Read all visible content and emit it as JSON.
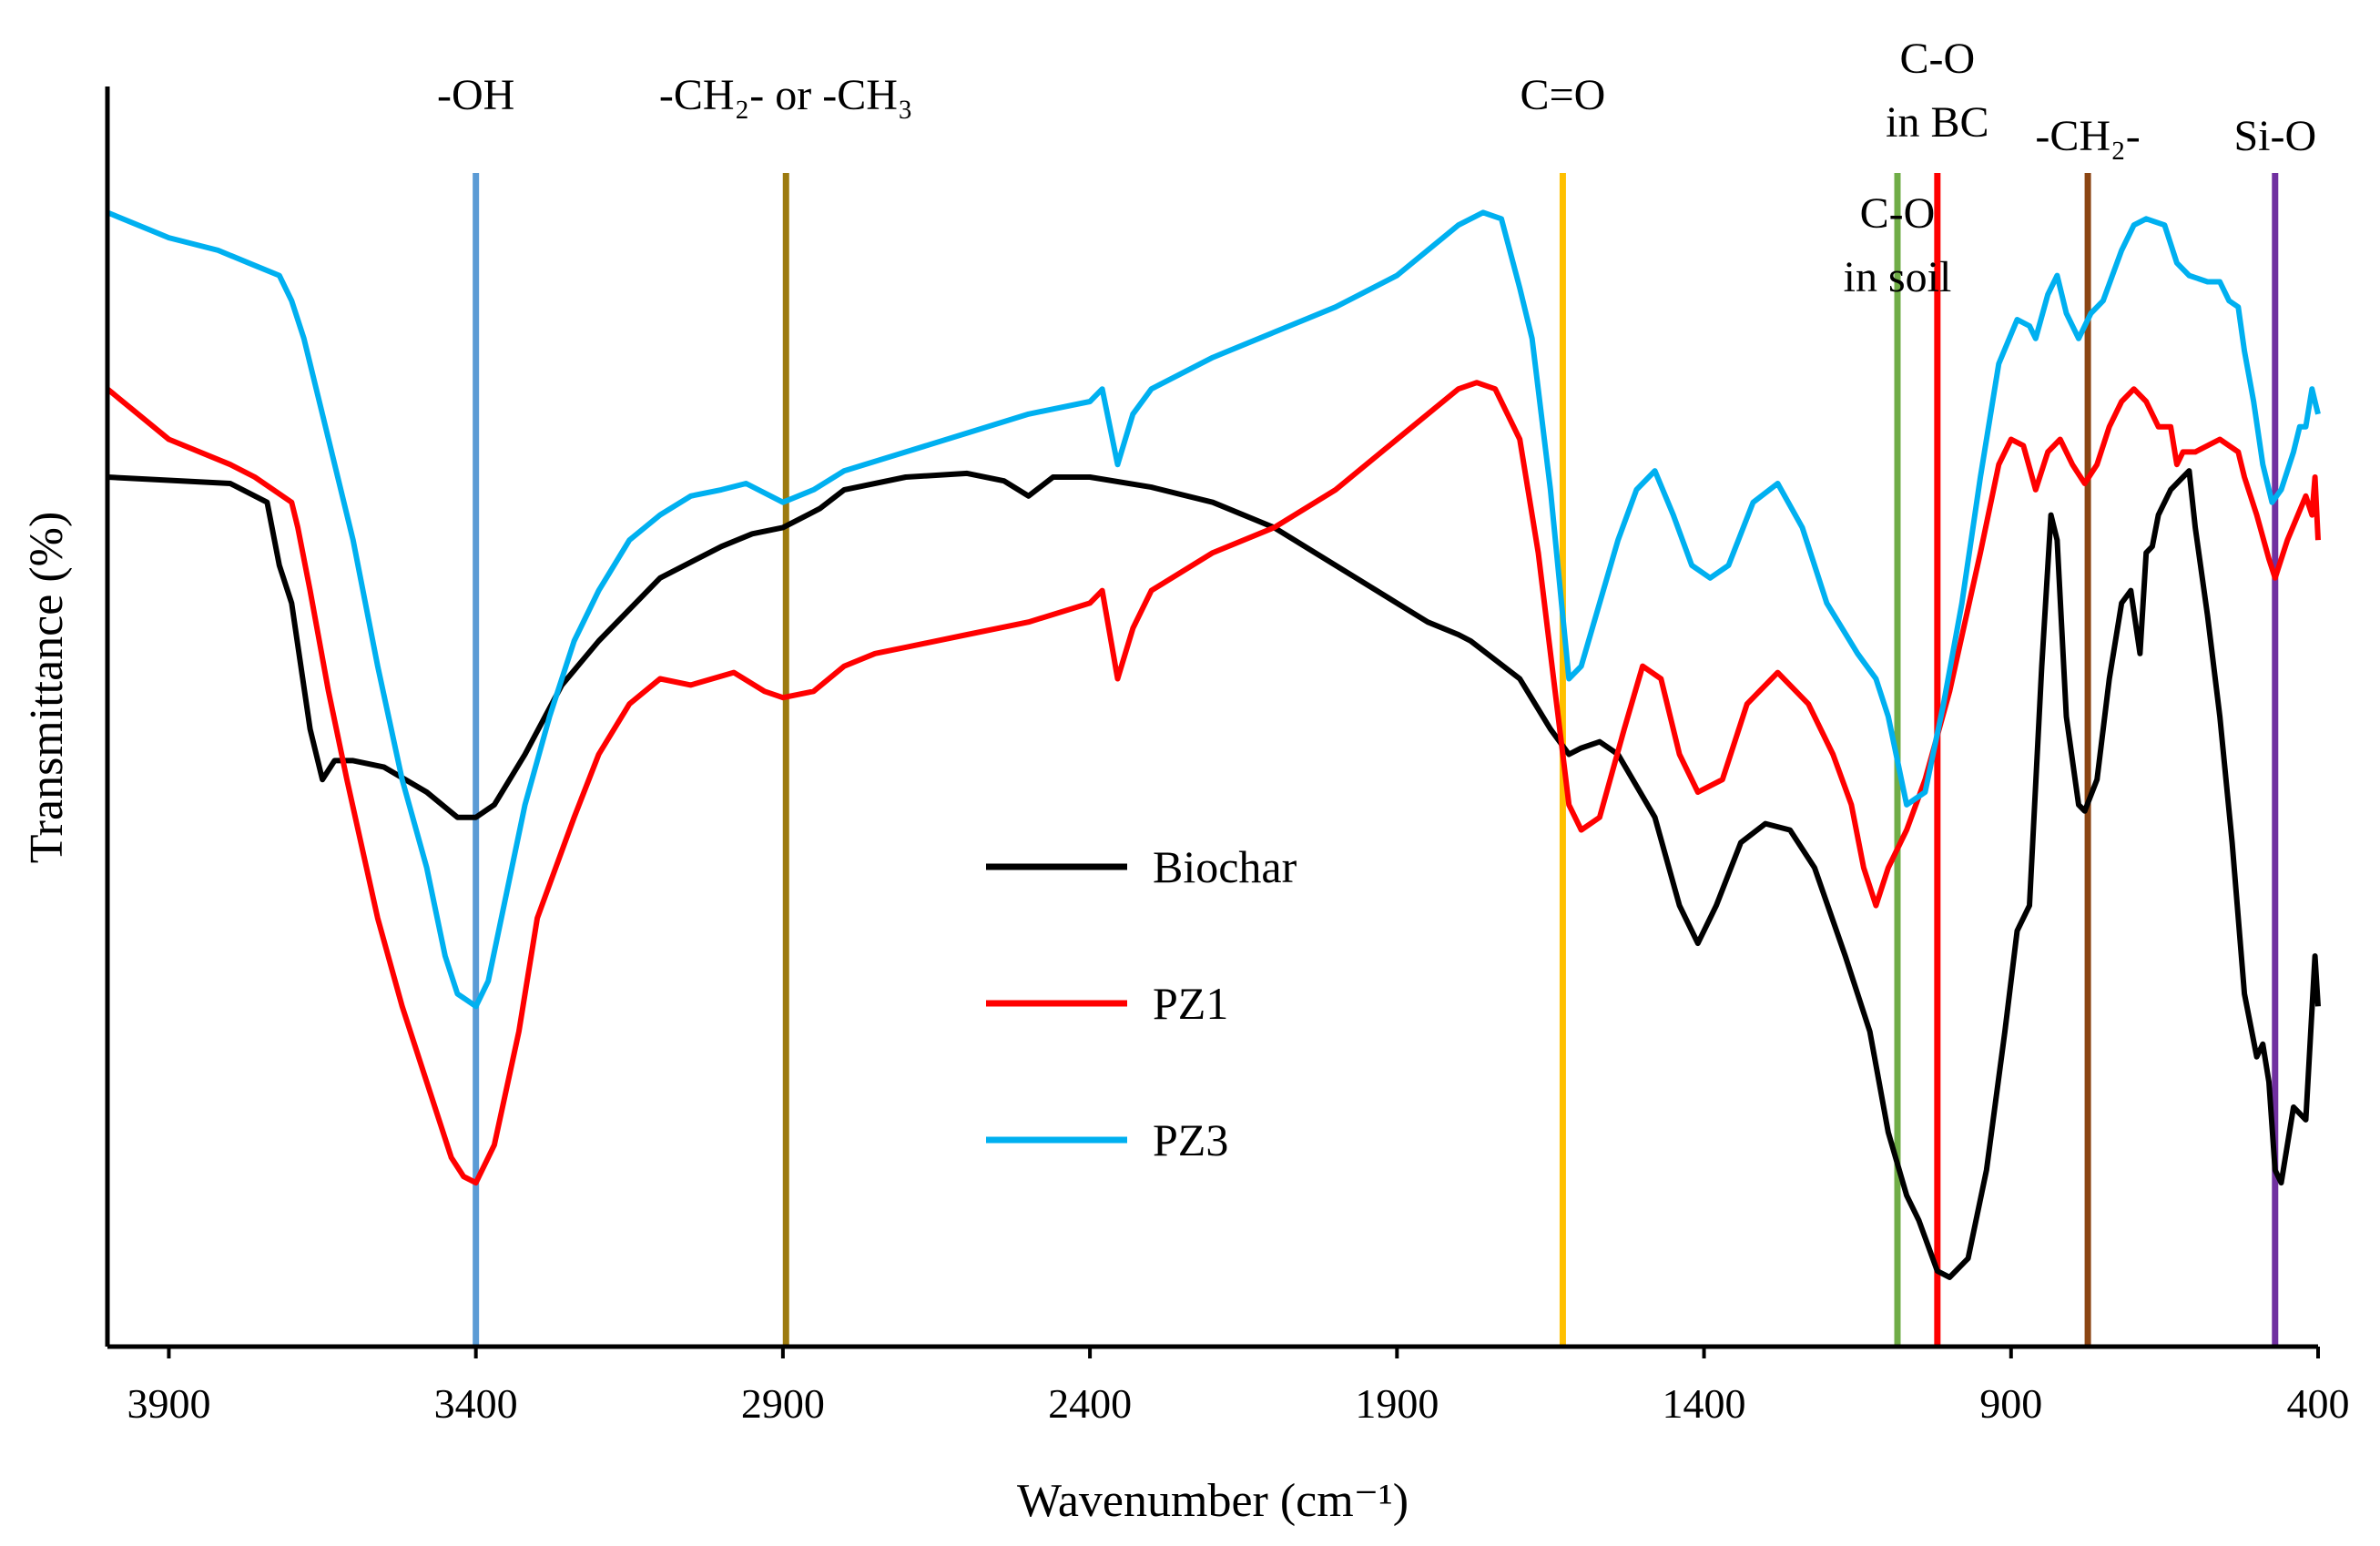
{
  "chart_data": {
    "type": "line",
    "xlabel": "Wavenumber (cm⁻¹)",
    "ylabel": "Transmittance (%)",
    "xlim": [
      4000,
      400
    ],
    "x_reversed": true,
    "y_tick_labels_shown": false,
    "ylim": [
      0,
      100
    ],
    "x_ticks": [
      3900,
      3400,
      2900,
      2400,
      1900,
      1400,
      900,
      400
    ],
    "grid": false,
    "legend_position": "center",
    "legend": [
      {
        "name": "Biochar",
        "color": "#000000"
      },
      {
        "name": "PZ1",
        "color": "#ff0000"
      },
      {
        "name": "PZ3",
        "color": "#00b0f0"
      }
    ],
    "annotations": [
      {
        "lines": [
          "-OH"
        ],
        "x": 3400,
        "color": "#5b9bd5"
      },
      {
        "lines": [
          "-CH₂- or -CH₃"
        ],
        "x": 2895,
        "color": "#9c7a0e"
      },
      {
        "lines": [
          "C=O"
        ],
        "x": 1630,
        "color": "#ffc000"
      },
      {
        "lines": [
          "C-O",
          "in soil"
        ],
        "x": 1085,
        "color": "#70ad47"
      },
      {
        "lines": [
          "C-O",
          "in BC"
        ],
        "x": 1020,
        "color": "#ff0000"
      },
      {
        "lines": [
          "-CH₂-"
        ],
        "x": 775,
        "color": "#8b4513"
      },
      {
        "lines": [
          "Si-O"
        ],
        "x": 470,
        "color": "#7030a0"
      }
    ],
    "series": [
      {
        "name": "Biochar",
        "color": "#000000",
        "points": [
          [
            4000,
            69
          ],
          [
            3800,
            68.5
          ],
          [
            3740,
            67
          ],
          [
            3720,
            62
          ],
          [
            3700,
            59
          ],
          [
            3670,
            49
          ],
          [
            3650,
            45
          ],
          [
            3630,
            46.5
          ],
          [
            3600,
            46.5
          ],
          [
            3550,
            46
          ],
          [
            3480,
            44
          ],
          [
            3430,
            42
          ],
          [
            3400,
            42
          ],
          [
            3370,
            43
          ],
          [
            3320,
            47
          ],
          [
            3260,
            52.5
          ],
          [
            3200,
            56
          ],
          [
            3100,
            61
          ],
          [
            3000,
            63.5
          ],
          [
            2950,
            64.5
          ],
          [
            2900,
            65
          ],
          [
            2840,
            66.5
          ],
          [
            2800,
            68
          ],
          [
            2700,
            69
          ],
          [
            2600,
            69.3
          ],
          [
            2540,
            68.7
          ],
          [
            2500,
            67.5
          ],
          [
            2460,
            69
          ],
          [
            2400,
            69
          ],
          [
            2300,
            68.2
          ],
          [
            2200,
            67
          ],
          [
            2100,
            65
          ],
          [
            2000,
            62
          ],
          [
            1900,
            59
          ],
          [
            1850,
            57.5
          ],
          [
            1800,
            56.5
          ],
          [
            1780,
            56
          ],
          [
            1700,
            53
          ],
          [
            1650,
            49
          ],
          [
            1620,
            47
          ],
          [
            1600,
            47.5
          ],
          [
            1570,
            48
          ],
          [
            1540,
            47
          ],
          [
            1480,
            42
          ],
          [
            1440,
            35
          ],
          [
            1410,
            32
          ],
          [
            1380,
            35
          ],
          [
            1340,
            40
          ],
          [
            1300,
            41.5
          ],
          [
            1260,
            41
          ],
          [
            1220,
            38
          ],
          [
            1170,
            31
          ],
          [
            1130,
            25
          ],
          [
            1100,
            17
          ],
          [
            1070,
            12
          ],
          [
            1050,
            10
          ],
          [
            1020,
            6
          ],
          [
            1000,
            5.5
          ],
          [
            970,
            7
          ],
          [
            940,
            14
          ],
          [
            910,
            25
          ],
          [
            890,
            33
          ],
          [
            870,
            35
          ],
          [
            850,
            54
          ],
          [
            835,
            66
          ],
          [
            825,
            64
          ],
          [
            810,
            50
          ],
          [
            790,
            43
          ],
          [
            780,
            42.5
          ],
          [
            760,
            45
          ],
          [
            740,
            53
          ],
          [
            720,
            59
          ],
          [
            705,
            60
          ],
          [
            690,
            55
          ],
          [
            680,
            63
          ],
          [
            670,
            63.5
          ],
          [
            660,
            66
          ],
          [
            640,
            68
          ],
          [
            620,
            69
          ],
          [
            610,
            69.5
          ],
          [
            600,
            65
          ],
          [
            580,
            58
          ],
          [
            560,
            50
          ],
          [
            540,
            40
          ],
          [
            520,
            28
          ],
          [
            500,
            23
          ],
          [
            490,
            24
          ],
          [
            480,
            21
          ],
          [
            470,
            14
          ],
          [
            460,
            13
          ],
          [
            440,
            19
          ],
          [
            420,
            18
          ],
          [
            405,
            31
          ],
          [
            400,
            27
          ]
        ]
      },
      {
        "name": "PZ1",
        "color": "#ff0000",
        "points": [
          [
            4000,
            76
          ],
          [
            3900,
            72
          ],
          [
            3800,
            70
          ],
          [
            3760,
            69
          ],
          [
            3700,
            67
          ],
          [
            3690,
            65
          ],
          [
            3670,
            60
          ],
          [
            3640,
            52
          ],
          [
            3610,
            45
          ],
          [
            3560,
            34
          ],
          [
            3520,
            27
          ],
          [
            3480,
            21
          ],
          [
            3440,
            15
          ],
          [
            3420,
            13.5
          ],
          [
            3400,
            13
          ],
          [
            3370,
            16
          ],
          [
            3330,
            25
          ],
          [
            3300,
            34
          ],
          [
            3270,
            38
          ],
          [
            3240,
            42
          ],
          [
            3200,
            47
          ],
          [
            3150,
            51
          ],
          [
            3100,
            53
          ],
          [
            3050,
            52.5
          ],
          [
            2980,
            53.5
          ],
          [
            2930,
            52
          ],
          [
            2900,
            51.5
          ],
          [
            2850,
            52
          ],
          [
            2800,
            54
          ],
          [
            2750,
            55
          ],
          [
            2700,
            55.5
          ],
          [
            2600,
            56.5
          ],
          [
            2500,
            57.5
          ],
          [
            2400,
            59
          ],
          [
            2380,
            60
          ],
          [
            2355,
            53
          ],
          [
            2330,
            57
          ],
          [
            2300,
            60
          ],
          [
            2200,
            63
          ],
          [
            2100,
            65
          ],
          [
            2000,
            68
          ],
          [
            1900,
            72
          ],
          [
            1800,
            76
          ],
          [
            1770,
            76.5
          ],
          [
            1740,
            76
          ],
          [
            1700,
            72
          ],
          [
            1670,
            63
          ],
          [
            1640,
            51
          ],
          [
            1620,
            43
          ],
          [
            1600,
            41
          ],
          [
            1570,
            42
          ],
          [
            1530,
            49
          ],
          [
            1500,
            54
          ],
          [
            1470,
            53
          ],
          [
            1440,
            47
          ],
          [
            1410,
            44
          ],
          [
            1370,
            45
          ],
          [
            1330,
            51
          ],
          [
            1280,
            53.5
          ],
          [
            1230,
            51
          ],
          [
            1190,
            47
          ],
          [
            1160,
            43
          ],
          [
            1140,
            38
          ],
          [
            1120,
            35
          ],
          [
            1100,
            38
          ],
          [
            1070,
            41
          ],
          [
            1040,
            45
          ],
          [
            1000,
            52
          ],
          [
            950,
            63
          ],
          [
            920,
            70
          ],
          [
            900,
            72
          ],
          [
            880,
            71.5
          ],
          [
            860,
            68
          ],
          [
            840,
            71
          ],
          [
            820,
            72
          ],
          [
            800,
            70
          ],
          [
            780,
            68.5
          ],
          [
            760,
            70
          ],
          [
            740,
            73
          ],
          [
            720,
            75
          ],
          [
            700,
            76
          ],
          [
            680,
            75
          ],
          [
            660,
            73
          ],
          [
            640,
            73
          ],
          [
            630,
            70
          ],
          [
            620,
            71
          ],
          [
            600,
            71
          ],
          [
            560,
            72
          ],
          [
            530,
            71
          ],
          [
            520,
            69
          ],
          [
            500,
            66
          ],
          [
            480,
            62.5
          ],
          [
            470,
            61
          ],
          [
            450,
            64
          ],
          [
            420,
            67.5
          ],
          [
            410,
            66
          ],
          [
            405,
            69
          ],
          [
            400,
            64
          ]
        ]
      },
      {
        "name": "PZ3",
        "color": "#00b0f0",
        "points": [
          [
            4000,
            90
          ],
          [
            3900,
            88
          ],
          [
            3820,
            87
          ],
          [
            3770,
            86
          ],
          [
            3720,
            85
          ],
          [
            3700,
            83
          ],
          [
            3680,
            80
          ],
          [
            3650,
            74
          ],
          [
            3600,
            64
          ],
          [
            3560,
            54
          ],
          [
            3520,
            45
          ],
          [
            3480,
            38
          ],
          [
            3450,
            31
          ],
          [
            3430,
            28
          ],
          [
            3400,
            27
          ],
          [
            3380,
            29
          ],
          [
            3350,
            36
          ],
          [
            3320,
            43
          ],
          [
            3280,
            50
          ],
          [
            3240,
            56
          ],
          [
            3200,
            60
          ],
          [
            3150,
            64
          ],
          [
            3100,
            66
          ],
          [
            3050,
            67.5
          ],
          [
            3000,
            68
          ],
          [
            2960,
            68.5
          ],
          [
            2900,
            67
          ],
          [
            2850,
            68
          ],
          [
            2800,
            69.5
          ],
          [
            2700,
            71
          ],
          [
            2600,
            72.5
          ],
          [
            2500,
            74
          ],
          [
            2400,
            75
          ],
          [
            2380,
            76
          ],
          [
            2355,
            70
          ],
          [
            2330,
            74
          ],
          [
            2300,
            76
          ],
          [
            2200,
            78.5
          ],
          [
            2100,
            80.5
          ],
          [
            2000,
            82.5
          ],
          [
            1900,
            85
          ],
          [
            1800,
            89
          ],
          [
            1760,
            90
          ],
          [
            1730,
            89.5
          ],
          [
            1700,
            84
          ],
          [
            1680,
            80
          ],
          [
            1650,
            68
          ],
          [
            1630,
            58
          ],
          [
            1620,
            53
          ],
          [
            1600,
            54
          ],
          [
            1570,
            59
          ],
          [
            1540,
            64
          ],
          [
            1510,
            68
          ],
          [
            1480,
            69.5
          ],
          [
            1450,
            66
          ],
          [
            1420,
            62
          ],
          [
            1390,
            61
          ],
          [
            1360,
            62
          ],
          [
            1320,
            67
          ],
          [
            1280,
            68.5
          ],
          [
            1240,
            65
          ],
          [
            1200,
            59
          ],
          [
            1150,
            55
          ],
          [
            1120,
            53
          ],
          [
            1100,
            50
          ],
          [
            1070,
            43
          ],
          [
            1040,
            44
          ],
          [
            1010,
            51
          ],
          [
            980,
            59
          ],
          [
            950,
            69
          ],
          [
            920,
            78
          ],
          [
            890,
            81.5
          ],
          [
            870,
            81
          ],
          [
            860,
            80
          ],
          [
            840,
            83.5
          ],
          [
            825,
            85
          ],
          [
            810,
            82
          ],
          [
            790,
            80
          ],
          [
            770,
            82
          ],
          [
            750,
            83
          ],
          [
            720,
            87
          ],
          [
            700,
            89
          ],
          [
            680,
            89.5
          ],
          [
            650,
            89
          ],
          [
            630,
            86
          ],
          [
            610,
            85
          ],
          [
            580,
            84.5
          ],
          [
            560,
            84.5
          ],
          [
            545,
            83
          ],
          [
            530,
            82.5
          ],
          [
            520,
            79
          ],
          [
            505,
            75
          ],
          [
            490,
            70
          ],
          [
            475,
            67
          ],
          [
            460,
            68
          ],
          [
            440,
            71
          ],
          [
            430,
            73
          ],
          [
            420,
            73
          ],
          [
            410,
            76
          ],
          [
            405,
            75
          ],
          [
            400,
            74
          ]
        ]
      }
    ]
  }
}
